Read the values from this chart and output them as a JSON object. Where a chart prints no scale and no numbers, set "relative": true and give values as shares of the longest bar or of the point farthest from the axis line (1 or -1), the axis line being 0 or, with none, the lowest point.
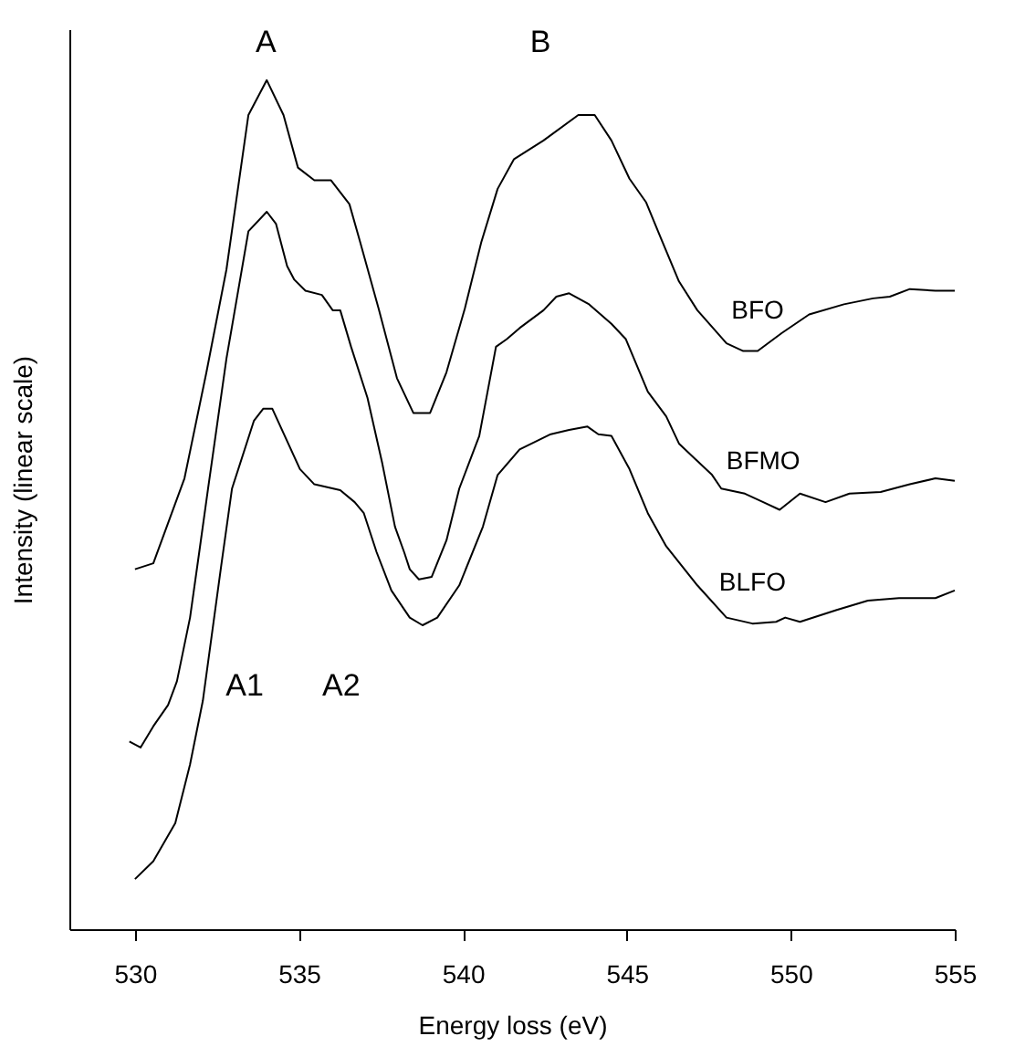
{
  "chart_data": {
    "type": "line",
    "relative": true,
    "xlabel": "Energy loss (eV)",
    "ylabel": "Intensity (linear scale)",
    "xlim": [
      528,
      555
    ],
    "xticks": [
      530,
      535,
      540,
      545,
      550,
      555
    ],
    "grid": false,
    "marker": "none",
    "line_style": "solid",
    "series": [
      {
        "name": "BFO",
        "color": "#000000",
        "x": [
          530,
          530.56,
          531.51,
          532.18,
          532.79,
          533.46,
          534.02,
          534.53,
          534.97,
          535.47,
          535.98,
          536.54,
          536.87,
          537.43,
          537.99,
          538.49,
          539.0,
          539.5,
          540.06,
          540.56,
          541.06,
          541.56,
          542.46,
          543.52,
          544.02,
          544.53,
          545.08,
          545.59,
          546.09,
          546.59,
          547.15,
          548.04,
          548.55,
          548.99,
          549.72,
          550.56,
          551.62,
          552.51,
          553.02,
          553.63,
          554.41,
          555
        ],
        "values": [
          0.424,
          0.431,
          0.531,
          0.656,
          0.777,
          0.959,
          1,
          0.959,
          0.897,
          0.882,
          0.882,
          0.854,
          0.809,
          0.731,
          0.649,
          0.608,
          0.608,
          0.656,
          0.731,
          0.809,
          0.872,
          0.907,
          0.929,
          0.959,
          0.959,
          0.929,
          0.884,
          0.856,
          0.809,
          0.763,
          0.729,
          0.69,
          0.681,
          0.681,
          0.702,
          0.724,
          0.736,
          0.743,
          0.745,
          0.754,
          0.752,
          0.752
        ]
      },
      {
        "name": "BFMO",
        "color": "#000000",
        "x": [
          529.83,
          530.17,
          530.56,
          531.01,
          531.28,
          531.68,
          531.96,
          532.23,
          532.79,
          533.46,
          534.02,
          534.3,
          534.64,
          534.86,
          535.2,
          535.7,
          536.03,
          536.26,
          536.59,
          537.09,
          537.54,
          537.93,
          538.21,
          538.38,
          538.66,
          539.05,
          539.5,
          539.89,
          540.5,
          541.01,
          541.34,
          541.73,
          542.46,
          542.85,
          543.24,
          543.85,
          544.53,
          544.97,
          545.64,
          546.2,
          546.59,
          547.6,
          547.88,
          548.6,
          549.16,
          549.66,
          550.28,
          551.06,
          551.79,
          552.74,
          553.63,
          554.41,
          555
        ],
        "values": [
          0.221,
          0.214,
          0.239,
          0.264,
          0.292,
          0.367,
          0.444,
          0.519,
          0.672,
          0.822,
          0.845,
          0.831,
          0.781,
          0.765,
          0.752,
          0.747,
          0.729,
          0.729,
          0.686,
          0.626,
          0.549,
          0.474,
          0.444,
          0.424,
          0.412,
          0.415,
          0.458,
          0.519,
          0.581,
          0.686,
          0.695,
          0.708,
          0.729,
          0.745,
          0.749,
          0.736,
          0.713,
          0.695,
          0.633,
          0.604,
          0.572,
          0.535,
          0.519,
          0.513,
          0.503,
          0.494,
          0.513,
          0.503,
          0.513,
          0.515,
          0.524,
          0.531,
          0.528
        ]
      },
      {
        "name": "BLFO",
        "color": "#000000",
        "x": [
          530,
          530.56,
          531.23,
          531.68,
          532.07,
          532.63,
          532.96,
          533.63,
          533.91,
          534.19,
          535.03,
          535.47,
          536.26,
          536.7,
          536.98,
          537.37,
          537.82,
          538.38,
          538.77,
          539.22,
          539.89,
          540.61,
          541.06,
          541.73,
          542.68,
          543.24,
          543.8,
          544.13,
          544.53,
          545.08,
          545.64,
          546.2,
          547.15,
          548.04,
          548.83,
          549.55,
          549.83,
          550.28,
          551.4,
          552.35,
          553.3,
          554.41,
          555
        ],
        "values": [
          0.059,
          0.08,
          0.125,
          0.194,
          0.269,
          0.428,
          0.519,
          0.599,
          0.613,
          0.613,
          0.542,
          0.524,
          0.517,
          0.503,
          0.49,
          0.444,
          0.399,
          0.367,
          0.358,
          0.367,
          0.405,
          0.474,
          0.535,
          0.565,
          0.583,
          0.588,
          0.592,
          0.583,
          0.581,
          0.542,
          0.49,
          0.451,
          0.405,
          0.367,
          0.36,
          0.362,
          0.367,
          0.362,
          0.376,
          0.387,
          0.39,
          0.39,
          0.399
        ]
      }
    ],
    "annotations": [
      "A",
      "B",
      "A1",
      "A2"
    ]
  }
}
